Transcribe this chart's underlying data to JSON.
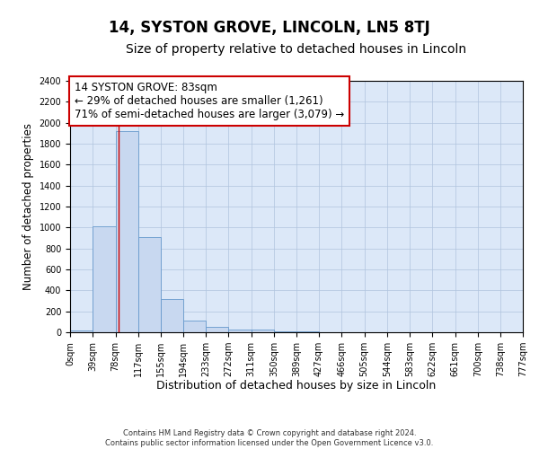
{
  "title": "14, SYSTON GROVE, LINCOLN, LN5 8TJ",
  "subtitle": "Size of property relative to detached houses in Lincoln",
  "xlabel": "Distribution of detached houses by size in Lincoln",
  "ylabel": "Number of detached properties",
  "bin_edges": [
    0,
    39,
    78,
    117,
    155,
    194,
    233,
    272,
    311,
    350,
    389,
    427,
    466,
    505,
    544,
    583,
    622,
    661,
    700,
    738,
    777
  ],
  "bar_heights": [
    20,
    1010,
    1920,
    905,
    320,
    115,
    55,
    30,
    30,
    5,
    5,
    0,
    0,
    0,
    0,
    0,
    0,
    0,
    0,
    0
  ],
  "bar_color": "#c8d8f0",
  "bar_edge_color": "#6699cc",
  "property_line_x": 83,
  "property_line_color": "#cc0000",
  "ylim": [
    0,
    2400
  ],
  "yticks": [
    0,
    200,
    400,
    600,
    800,
    1000,
    1200,
    1400,
    1600,
    1800,
    2000,
    2200,
    2400
  ],
  "annotation_line1": "14 SYSTON GROVE: 83sqm",
  "annotation_line2": "← 29% of detached houses are smaller (1,261)",
  "annotation_line3": "71% of semi-detached houses are larger (3,079) →",
  "annotation_box_color": "#cc0000",
  "background_color": "#dce8f8",
  "grid_color": "#b0c4de",
  "footer_text": "Contains HM Land Registry data © Crown copyright and database right 2024.\nContains public sector information licensed under the Open Government Licence v3.0.",
  "title_fontsize": 12,
  "subtitle_fontsize": 10,
  "tick_label_fontsize": 7,
  "ylabel_fontsize": 8.5,
  "xlabel_fontsize": 9,
  "annotation_fontsize": 8.5
}
